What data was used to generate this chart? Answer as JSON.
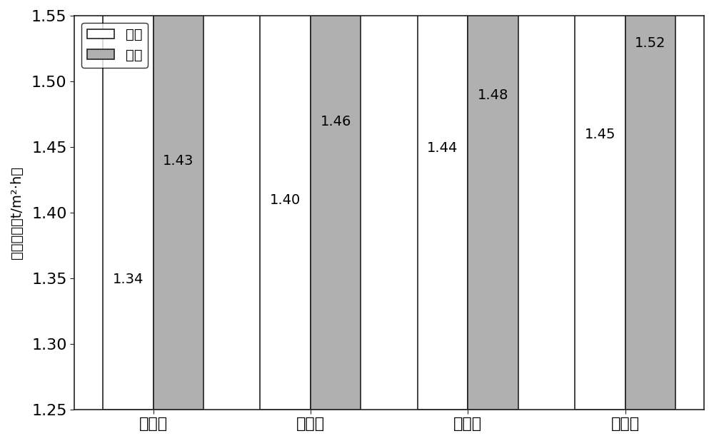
{
  "categories": [
    "一阶段",
    "二阶段",
    "三阶段",
    "四阶段"
  ],
  "series1_label": "一档",
  "series2_label": "二档",
  "series1_values": [
    1.34,
    1.4,
    1.44,
    1.45
  ],
  "series2_values": [
    1.43,
    1.46,
    1.48,
    1.52
  ],
  "series1_color": "#ffffff",
  "series2_color": "#b0b0b0",
  "bar_edge_color": "#222222",
  "ylabel": "利用系数（t/m²·h）",
  "ylim": [
    1.25,
    1.55
  ],
  "yticks": [
    1.25,
    1.3,
    1.35,
    1.4,
    1.45,
    1.5,
    1.55
  ],
  "bar_width": 0.32,
  "tick_fontsize": 16,
  "ylabel_fontsize": 14,
  "legend_fontsize": 14,
  "annotation_fontsize": 14,
  "background_color": "#ffffff",
  "axes_background": "#ffffff"
}
